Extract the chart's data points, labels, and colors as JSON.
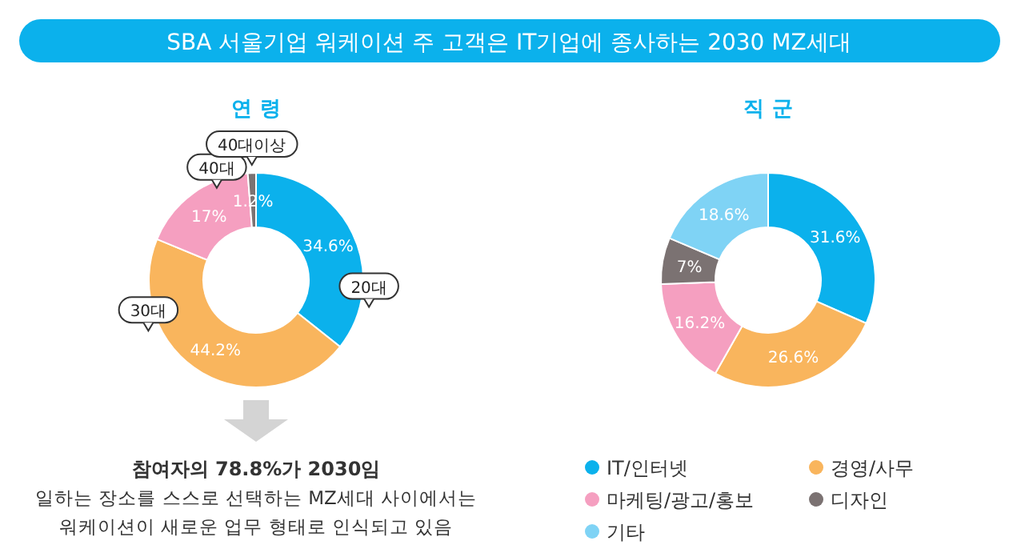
{
  "chart_data": [
    {
      "type": "donut",
      "title": "SBA 서울기업 워케이션 주 고객은 IT기업에 종사하는 2030 MZ세대",
      "subtitle": "연 령",
      "categories": [
        "20대",
        "30대",
        "40대",
        "40대이상"
      ],
      "values": [
        34.6,
        44.2,
        17,
        1.2
      ],
      "value_labels": [
        "34.6%",
        "44.2%",
        "17%",
        "1.2%"
      ],
      "colors": [
        "#0bb1ec",
        "#f9b55d",
        "#f59fc0",
        "#7b7272"
      ],
      "annotations": [
        "참여자의 78.8%가 2030임",
        "일하는 장소를 스스로 선택하는 MZ세대 사이에서는",
        "워케이션이 새로운 업무 형태로 인식되고 있음"
      ]
    },
    {
      "type": "donut",
      "title": "직 군",
      "categories": [
        "IT/인터넷",
        "경영/사무",
        "마케팅/광고/홍보",
        "디자인",
        "기타"
      ],
      "values": [
        31.6,
        26.6,
        16.2,
        7,
        18.6
      ],
      "value_labels": [
        "31.6%",
        "26.6%",
        "16.2%",
        "7%",
        "18.6%"
      ],
      "colors": [
        "#0bb1ec",
        "#f9b55d",
        "#f59fc0",
        "#7b7272",
        "#7fd3f5"
      ],
      "legend": "bottom"
    }
  ]
}
